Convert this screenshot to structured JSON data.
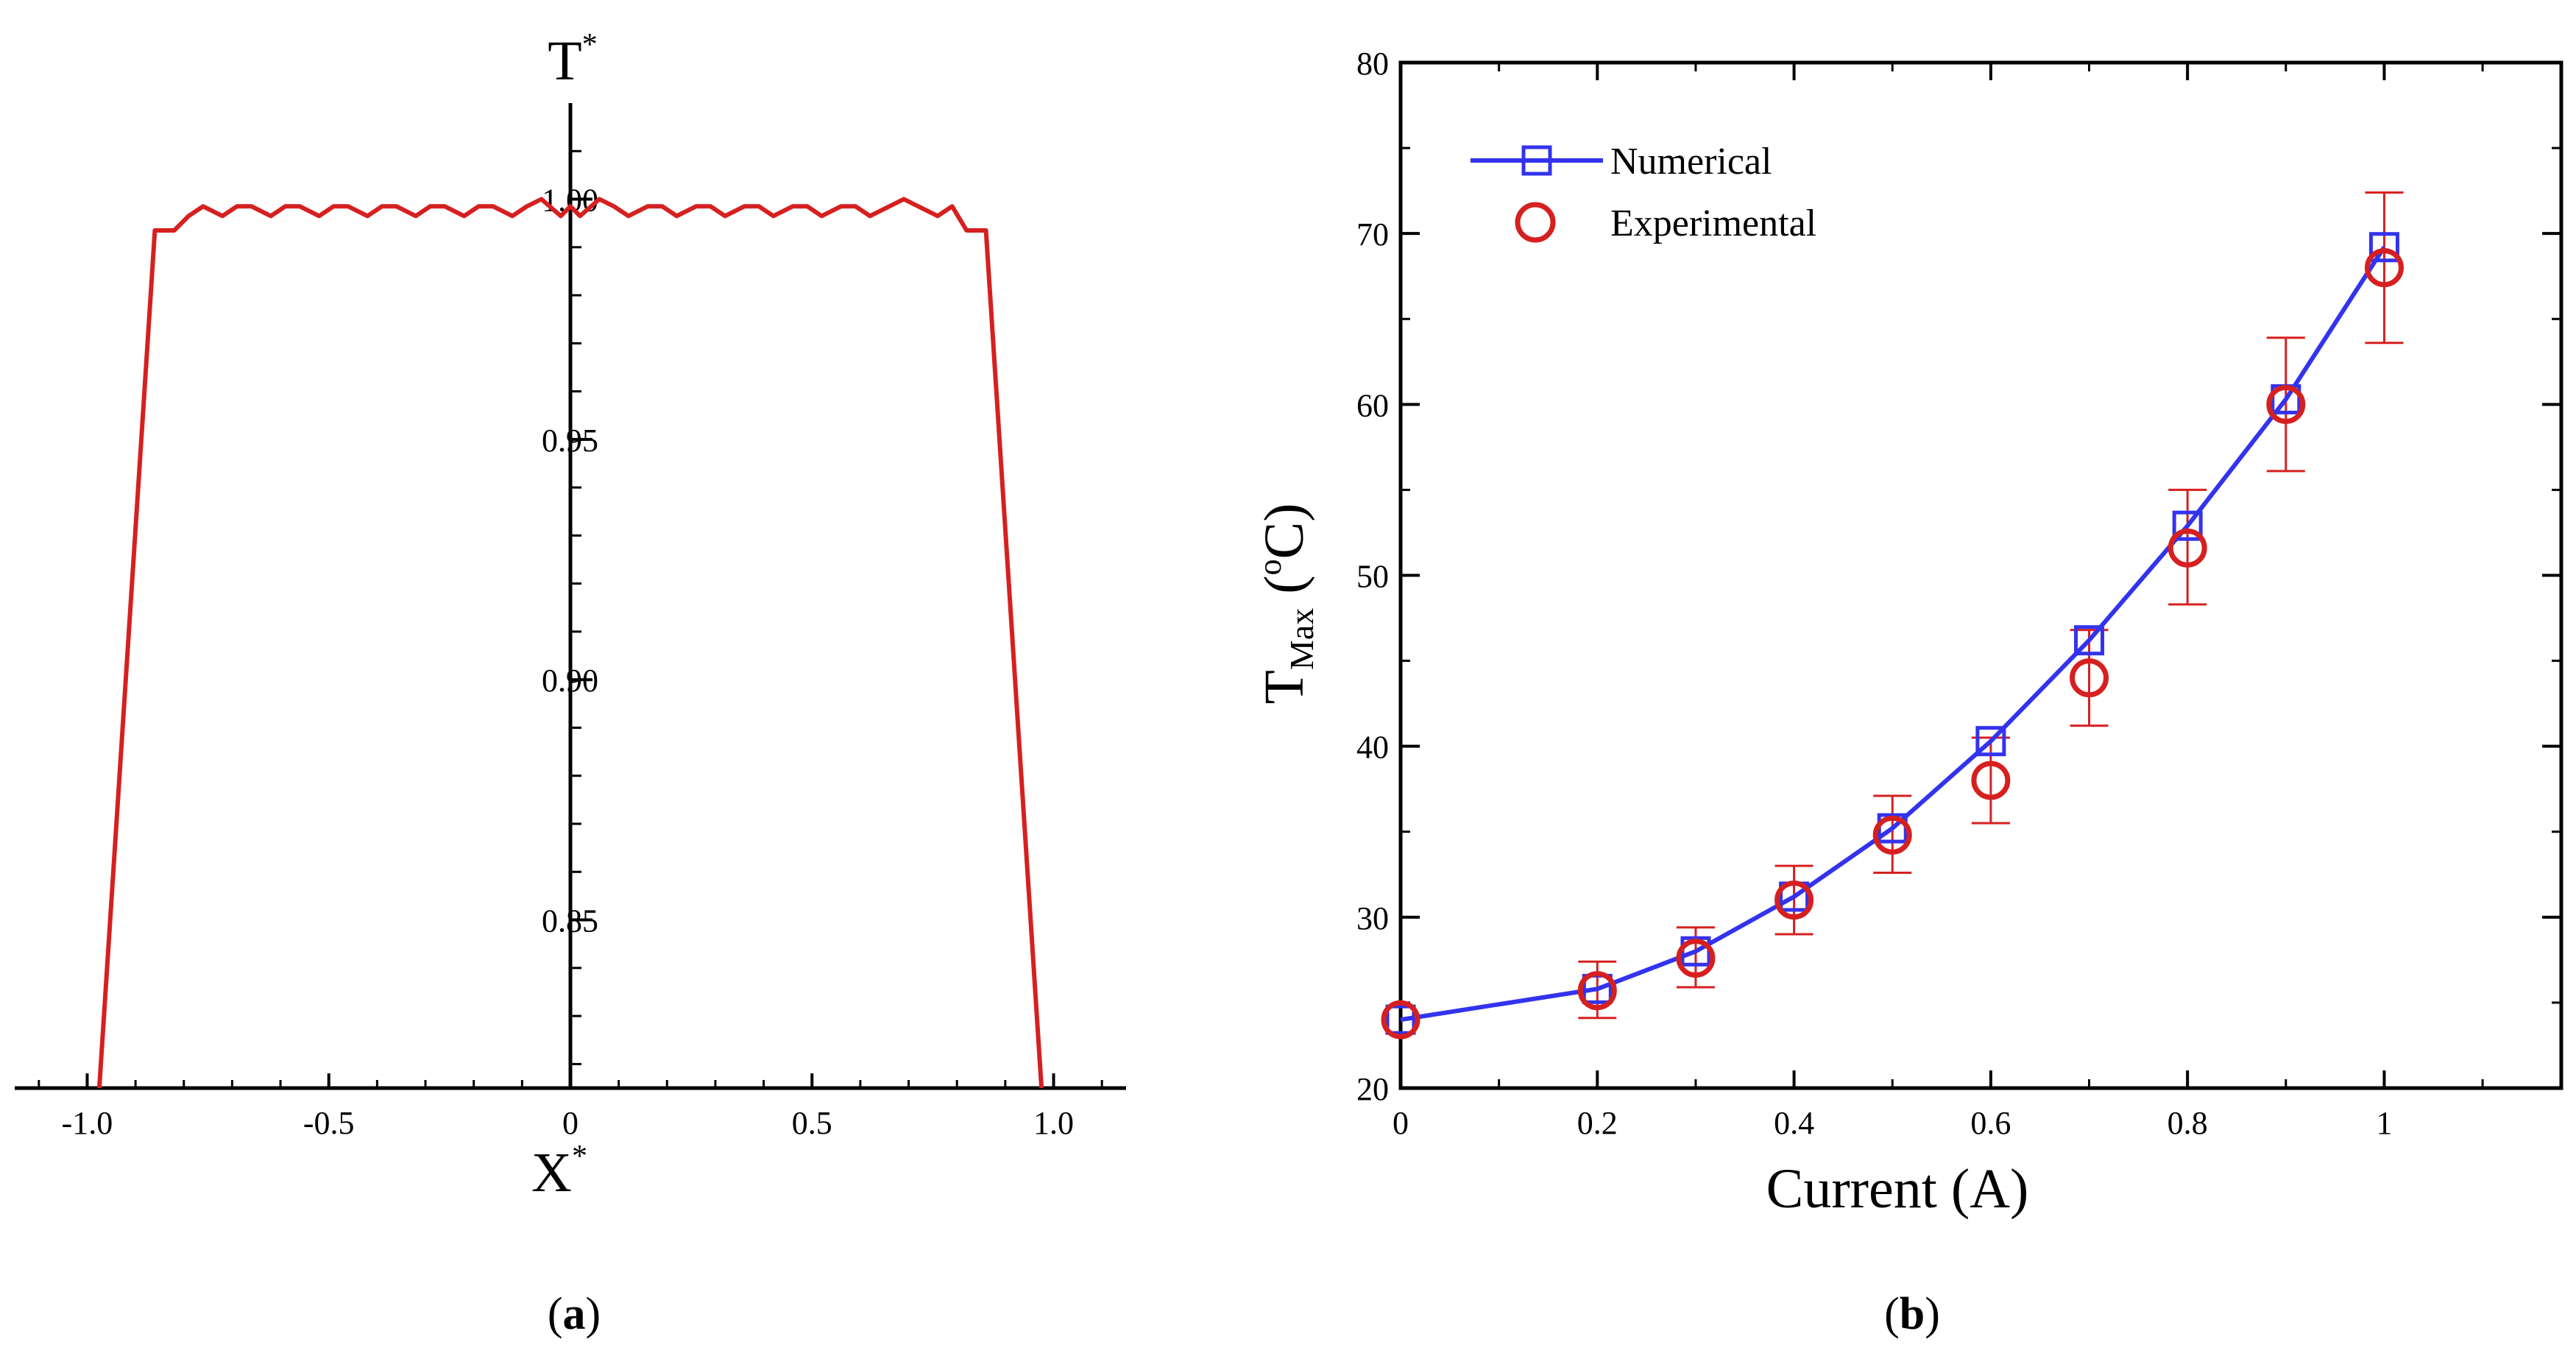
{
  "figure": {
    "panel_a_label": {
      "open": "(",
      "letter": "a",
      "close": ")"
    },
    "panel_b_label": {
      "open": "(",
      "letter": "b",
      "close": ")"
    }
  },
  "colors": {
    "line_a": "#d62020",
    "numerical": "#3333ee",
    "experimental": "#d62020",
    "axis": "#000000"
  },
  "chart_data": [
    {
      "type": "line",
      "panel": "a",
      "xlabel": {
        "base": "X",
        "sup": "*"
      },
      "ylabel": {
        "base": "T",
        "sup": "*"
      },
      "xlim": [
        -1.15,
        1.15
      ],
      "ylim": [
        0.815,
        1.02
      ],
      "x_ticks": [
        -1.0,
        -0.5,
        0,
        0.5,
        1.0
      ],
      "x_tick_labels": [
        "-1.0",
        "-0.5",
        "0",
        "0.5",
        "1.0"
      ],
      "y_ticks": [
        0.85,
        0.9,
        0.95,
        1.0
      ],
      "y_tick_labels": [
        "0.85",
        "0.90",
        "0.95",
        "1.00"
      ],
      "grid": false,
      "series": [
        {
          "x": [
            -0.975,
            -0.86,
            -0.82,
            -0.79,
            -0.76,
            -0.72,
            -0.69,
            -0.66,
            -0.62,
            -0.59,
            -0.56,
            -0.52,
            -0.49,
            -0.46,
            -0.42,
            -0.39,
            -0.36,
            -0.32,
            -0.29,
            -0.26,
            -0.22,
            -0.19,
            -0.16,
            -0.12,
            -0.09,
            -0.06,
            -0.02,
            0.0,
            0.02,
            0.06,
            0.09,
            0.12,
            0.16,
            0.19,
            0.22,
            0.26,
            0.29,
            0.32,
            0.36,
            0.39,
            0.42,
            0.46,
            0.49,
            0.52,
            0.56,
            0.59,
            0.62,
            0.66,
            0.69,
            0.72,
            0.76,
            0.79,
            0.82,
            0.86,
            0.975
          ],
          "y": [
            0.815,
            0.9935,
            0.9935,
            0.9965,
            0.9985,
            0.9965,
            0.9985,
            0.9985,
            0.9965,
            0.9985,
            0.9985,
            0.9965,
            0.9985,
            0.9985,
            0.9965,
            0.9985,
            0.9985,
            0.9965,
            0.9985,
            0.9985,
            0.9965,
            0.9985,
            0.9985,
            0.9965,
            0.9985,
            1.0,
            0.9965,
            0.9985,
            0.9965,
            1.0,
            0.9985,
            0.9965,
            0.9985,
            0.9985,
            0.9965,
            0.9985,
            0.9985,
            0.9965,
            0.9985,
            0.9985,
            0.9965,
            0.9985,
            0.9985,
            0.9965,
            0.9985,
            0.9985,
            0.9965,
            0.9985,
            1.0,
            0.9985,
            0.9965,
            0.9985,
            0.9935,
            0.9935,
            0.815
          ]
        }
      ]
    },
    {
      "type": "line",
      "panel": "b",
      "xlabel": {
        "text": "Current (A)"
      },
      "ylabel": {
        "base": "T",
        "sub": "Max",
        "unit_open": " (",
        "unit_sup": "o",
        "unit": "C)"
      },
      "xlim": [
        0,
        1.18
      ],
      "ylim": [
        20,
        80
      ],
      "x_ticks": [
        0,
        0.2,
        0.4,
        0.6,
        0.8,
        1
      ],
      "x_tick_labels": [
        "0",
        "0.2",
        "0.4",
        "0.6",
        "0.8",
        "1"
      ],
      "y_ticks": [
        20,
        30,
        40,
        50,
        60,
        70,
        80
      ],
      "y_tick_labels": [
        "20",
        "30",
        "40",
        "50",
        "60",
        "70",
        "80"
      ],
      "grid": false,
      "legend": {
        "placement": "top-left",
        "entries": [
          "Numerical",
          "Experimental"
        ]
      },
      "series": [
        {
          "name": "Numerical",
          "marker": "square",
          "x": [
            0,
            0.2,
            0.3,
            0.4,
            0.5,
            0.6,
            0.7,
            0.8,
            0.9,
            1.0
          ],
          "y": [
            24,
            25.8,
            28,
            31.2,
            35.2,
            40.3,
            46.2,
            52.9,
            60.3,
            69.2
          ]
        },
        {
          "name": "Experimental",
          "marker": "circle",
          "x": [
            0,
            0.2,
            0.3,
            0.4,
            0.5,
            0.6,
            0.7,
            0.8,
            0.9,
            1.0
          ],
          "y": [
            24,
            25.7,
            27.6,
            31.0,
            34.8,
            38.0,
            44.0,
            51.6,
            60.0,
            68.0
          ],
          "error_low": [
            24,
            24.1,
            25.9,
            29.0,
            32.6,
            35.5,
            41.2,
            48.3,
            56.1,
            63.6
          ],
          "error_high": [
            24,
            27.4,
            29.4,
            33.0,
            37.1,
            40.5,
            46.8,
            55.0,
            63.9,
            72.4
          ]
        }
      ]
    }
  ]
}
